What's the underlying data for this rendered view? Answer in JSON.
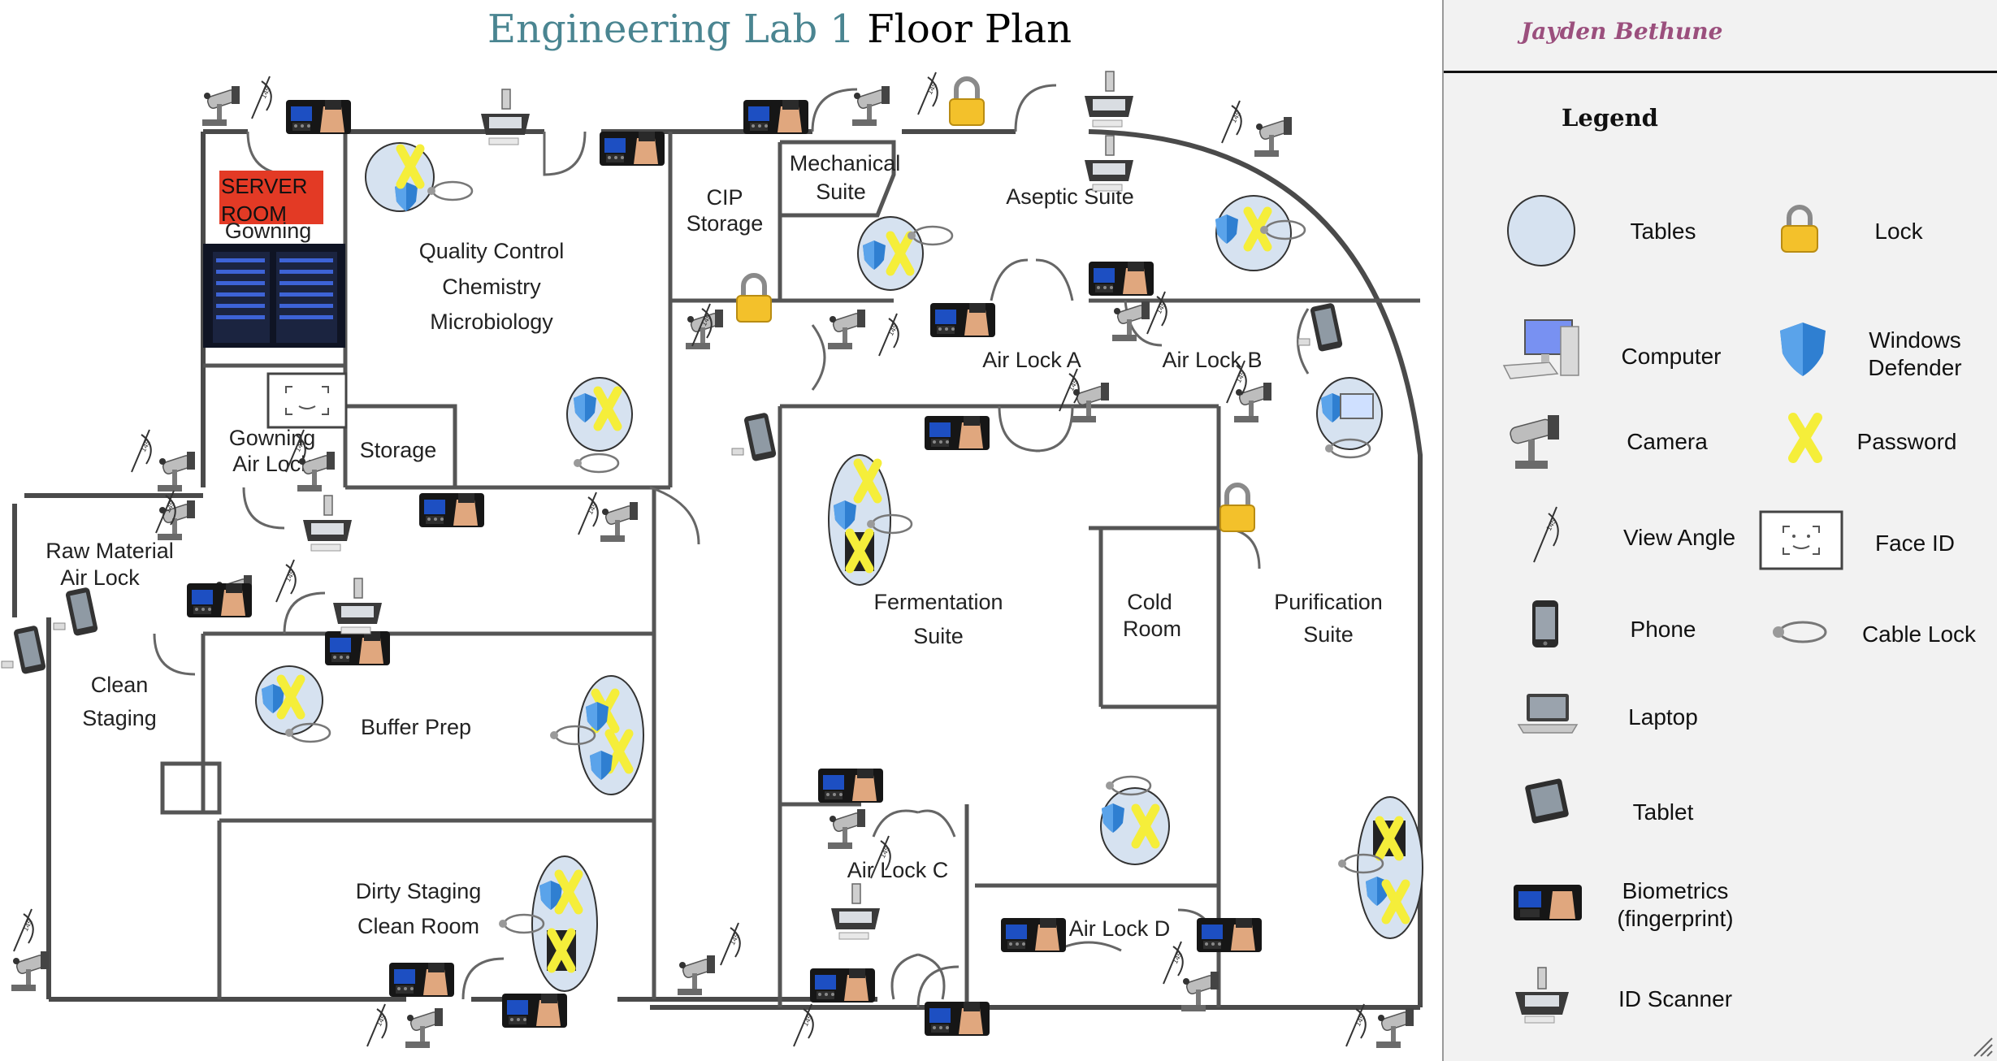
{
  "title": {
    "part1": "Engineering Lab 1",
    "part2": "Floor Plan",
    "part1_color": "#4a8591",
    "part2_color": "#000000"
  },
  "author": "Jayden Bethune",
  "server_room": {
    "line1": "SERVER",
    "line2": "ROOM",
    "color": "#e33a25"
  },
  "rooms": {
    "gowning": "Gowning",
    "qc1": "Quality Control",
    "qc2": "Chemistry",
    "qc3": "Microbiology",
    "cip1": "CIP",
    "cip2": "Storage",
    "mech1": "Mechanical",
    "mech2": "Suite",
    "aseptic": "Aseptic Suite",
    "airlock_a": "Air Lock A",
    "airlock_b": "Air Lock B",
    "gown_al1": "Gowning",
    "gown_al2": "Air Lock",
    "storage": "Storage",
    "raw1": "Raw Material",
    "raw2": "Air Lock",
    "clean1": "Clean",
    "clean2": "Staging",
    "buffer": "Buffer Prep",
    "ferm1": "Fermentation",
    "ferm2": "Suite",
    "cold1": "Cold",
    "cold2": "Room",
    "purif1": "Purification",
    "purif2": "Suite",
    "dirty1": "Dirty Staging",
    "dirty2": "Clean Room",
    "airlock_c": "Air Lock C",
    "airlock_d": "Air Lock D"
  },
  "legend": {
    "title": "Legend",
    "items": [
      {
        "icon": "table-icon",
        "label": "Tables"
      },
      {
        "icon": "lock-icon",
        "label": "Lock"
      },
      {
        "icon": "computer-icon",
        "label": "Computer"
      },
      {
        "icon": "windows-defender-icon",
        "label1": "Windows",
        "label2": "Defender"
      },
      {
        "icon": "camera-icon",
        "label": "Camera"
      },
      {
        "icon": "password-icon",
        "label": "Password"
      },
      {
        "icon": "view-angle-icon",
        "label": "View Angle"
      },
      {
        "icon": "face-id-icon",
        "label": "Face ID"
      },
      {
        "icon": "phone-icon",
        "label": "Phone"
      },
      {
        "icon": "cable-lock-icon",
        "label": "Cable Lock"
      },
      {
        "icon": "laptop-icon",
        "label": "Laptop"
      },
      {
        "icon": "tablet-icon",
        "label": "Tablet"
      },
      {
        "icon": "biometrics-icon",
        "label1": "Biometrics",
        "label2": "(fingerprint)"
      },
      {
        "icon": "id-scanner-icon",
        "label": "ID Scanner"
      }
    ]
  },
  "colors": {
    "table_fill": "#d6e2f0",
    "lock": "#f3c12b",
    "password": "#f5ee3a",
    "shield": "#2f7fd1",
    "sidebar_bg": "#f2f2f2"
  }
}
